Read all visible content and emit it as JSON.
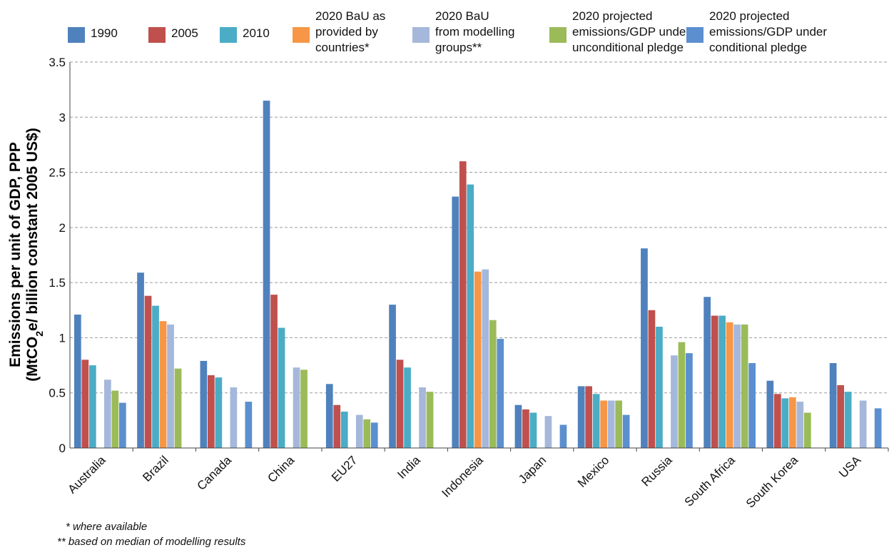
{
  "chart_data": {
    "type": "bar",
    "ylabel_line1": "Emissions per unit of GDP, PPP",
    "ylabel_line2_prefix": "(MtCO",
    "ylabel_line2_sub": "2",
    "ylabel_line2_suffix": "e/ billion constant 2005 US$)",
    "ylim": [
      0,
      3.5
    ],
    "yticks": [
      "0",
      "0.5",
      "1",
      "1.5",
      "2",
      "2.5",
      "3",
      "3.5"
    ],
    "grid": true,
    "legend_position": "top",
    "categories": [
      "Australia",
      "Brazil",
      "Canada",
      "China",
      "EU27",
      "India",
      "Indonesia",
      "Japan",
      "Mexico",
      "Russia",
      "South Africa",
      "South Korea",
      "USA"
    ],
    "series": [
      {
        "name": "1990",
        "color": "#4f81bd",
        "values": [
          1.21,
          1.59,
          0.79,
          3.15,
          0.58,
          1.3,
          2.28,
          0.39,
          0.56,
          1.81,
          1.37,
          0.61,
          0.77
        ]
      },
      {
        "name": "2005",
        "color": "#c0504d",
        "values": [
          0.8,
          1.38,
          0.66,
          1.39,
          0.39,
          0.8,
          2.6,
          0.35,
          0.56,
          1.25,
          1.2,
          0.49,
          0.57
        ]
      },
      {
        "name": "2010",
        "color": "#4bacc6",
        "values": [
          0.75,
          1.29,
          0.64,
          1.09,
          0.33,
          0.73,
          2.39,
          0.32,
          0.49,
          1.1,
          1.2,
          0.45,
          0.51
        ]
      },
      {
        "name": "2020 BaU as provided by countries*",
        "color": "#f79646",
        "values": [
          null,
          1.15,
          null,
          null,
          null,
          null,
          1.6,
          null,
          0.43,
          null,
          1.14,
          0.46,
          null
        ]
      },
      {
        "name": "2020 BaU from modelling groups**",
        "color": "#a5b8db",
        "values": [
          0.62,
          1.12,
          0.55,
          0.73,
          0.3,
          0.55,
          1.62,
          0.29,
          0.43,
          0.84,
          1.12,
          0.42,
          0.43
        ]
      },
      {
        "name": "2020 projected emissions/GDP under unconditional pledge",
        "color": "#9bbb59",
        "values": [
          0.52,
          0.72,
          null,
          0.71,
          0.26,
          0.51,
          1.16,
          null,
          0.43,
          0.96,
          1.12,
          0.32,
          null
        ]
      },
      {
        "name": "2020 projected emissions/GDP under conditional pledge",
        "color": "#5b8fd0",
        "values": [
          0.41,
          null,
          0.42,
          null,
          0.23,
          null,
          0.99,
          0.21,
          0.3,
          0.86,
          0.77,
          null,
          0.36
        ]
      }
    ]
  },
  "legend": {
    "items": [
      {
        "label": "1990",
        "color": "#4f81bd"
      },
      {
        "label": "2005",
        "color": "#c0504d"
      },
      {
        "label": "2010",
        "color": "#4bacc6"
      },
      {
        "label": "2020 BaU as\nprovided by\ncountries*",
        "color": "#f79646"
      },
      {
        "label": "2020 BaU\nfrom modelling\ngroups**",
        "color": "#a5b8db"
      },
      {
        "label": "2020 projected\nemissions/GDP under\nunconditional pledge",
        "color": "#9bbb59"
      },
      {
        "label": "2020 projected\nemissions/GDP under\nconditional pledge",
        "color": "#5b8fd0"
      }
    ]
  },
  "footnotes": {
    "note1": "* where available",
    "note2": "** based on median of modelling results"
  }
}
